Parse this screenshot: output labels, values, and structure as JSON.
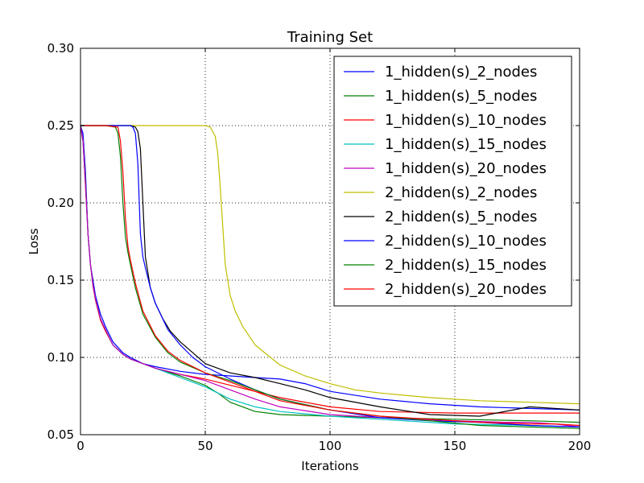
{
  "chart_data": {
    "type": "line",
    "title": "Training Set",
    "xlabel": "Iterations",
    "ylabel": "Loss",
    "xlim": [
      0,
      200
    ],
    "ylim": [
      0.05,
      0.3
    ],
    "xticks": [
      "0",
      "50",
      "100",
      "150",
      "200"
    ],
    "yticks": [
      "0.05",
      "0.10",
      "0.15",
      "0.20",
      "0.25",
      "0.30"
    ],
    "grid": true,
    "legend_position": "top-right",
    "series": [
      {
        "name": "1_hidden(s)_2_nodes",
        "color": "#0000ff",
        "x": [
          0,
          1,
          2,
          3,
          4,
          5,
          6,
          8,
          10,
          13,
          17,
          20,
          25,
          30,
          40,
          50,
          60,
          70,
          80,
          90,
          100,
          120,
          140,
          160,
          180,
          200
        ],
        "y": [
          0.25,
          0.245,
          0.22,
          0.18,
          0.16,
          0.15,
          0.14,
          0.128,
          0.12,
          0.11,
          0.103,
          0.1,
          0.096,
          0.094,
          0.091,
          0.089,
          0.088,
          0.087,
          0.086,
          0.083,
          0.078,
          0.073,
          0.07,
          0.068,
          0.067,
          0.066
        ]
      },
      {
        "name": "1_hidden(s)_5_nodes",
        "color": "#008000",
        "x": [
          0,
          1,
          2,
          3,
          4,
          5,
          6,
          8,
          10,
          13,
          17,
          20,
          25,
          30,
          40,
          50,
          55,
          60,
          70,
          80,
          100,
          120,
          150,
          180,
          200
        ],
        "y": [
          0.25,
          0.24,
          0.215,
          0.18,
          0.16,
          0.147,
          0.138,
          0.125,
          0.118,
          0.108,
          0.102,
          0.099,
          0.096,
          0.093,
          0.088,
          0.082,
          0.077,
          0.071,
          0.065,
          0.063,
          0.062,
          0.061,
          0.06,
          0.059,
          0.058
        ]
      },
      {
        "name": "1_hidden(s)_10_nodes",
        "color": "#ff0000",
        "x": [
          0,
          1,
          2,
          3,
          4,
          5,
          6,
          8,
          10,
          13,
          17,
          20,
          25,
          30,
          40,
          50,
          60,
          70,
          80,
          100,
          120,
          150,
          180,
          200
        ],
        "y": [
          0.25,
          0.24,
          0.21,
          0.18,
          0.16,
          0.146,
          0.137,
          0.124,
          0.117,
          0.108,
          0.102,
          0.099,
          0.096,
          0.093,
          0.089,
          0.086,
          0.082,
          0.078,
          0.074,
          0.068,
          0.065,
          0.064,
          0.064,
          0.064
        ]
      },
      {
        "name": "1_hidden(s)_15_nodes",
        "color": "#00bfbf",
        "x": [
          0,
          1,
          2,
          3,
          4,
          5,
          6,
          8,
          10,
          13,
          17,
          20,
          25,
          30,
          40,
          50,
          55,
          60,
          70,
          80,
          100,
          120,
          150,
          180,
          200
        ],
        "y": [
          0.25,
          0.24,
          0.212,
          0.18,
          0.16,
          0.147,
          0.138,
          0.125,
          0.118,
          0.108,
          0.102,
          0.099,
          0.096,
          0.093,
          0.087,
          0.081,
          0.077,
          0.073,
          0.068,
          0.065,
          0.062,
          0.06,
          0.057,
          0.056,
          0.055
        ]
      },
      {
        "name": "1_hidden(s)_20_nodes",
        "color": "#bf00bf",
        "x": [
          0,
          1,
          2,
          3,
          4,
          5,
          6,
          8,
          10,
          13,
          17,
          20,
          25,
          30,
          40,
          50,
          60,
          70,
          80,
          100,
          120,
          150,
          170,
          180,
          190,
          200
        ],
        "y": [
          0.25,
          0.24,
          0.212,
          0.18,
          0.16,
          0.147,
          0.138,
          0.125,
          0.118,
          0.108,
          0.102,
          0.099,
          0.096,
          0.093,
          0.089,
          0.085,
          0.079,
          0.073,
          0.068,
          0.063,
          0.061,
          0.059,
          0.058,
          0.058,
          0.057,
          0.055
        ]
      },
      {
        "name": "2_hidden(s)_2_nodes",
        "color": "#bfbf00",
        "x": [
          0,
          10,
          20,
          30,
          40,
          50,
          52,
          54,
          55,
          56,
          57,
          58,
          60,
          62,
          65,
          70,
          80,
          90,
          100,
          110,
          120,
          140,
          160,
          180,
          200
        ],
        "y": [
          0.25,
          0.25,
          0.25,
          0.25,
          0.25,
          0.25,
          0.249,
          0.243,
          0.232,
          0.21,
          0.185,
          0.16,
          0.14,
          0.13,
          0.12,
          0.108,
          0.095,
          0.088,
          0.083,
          0.079,
          0.077,
          0.074,
          0.072,
          0.071,
          0.07
        ]
      },
      {
        "name": "2_hidden(s)_5_nodes",
        "color": "#000000",
        "x": [
          0,
          10,
          20,
          22,
          23,
          24,
          25,
          26,
          27,
          28,
          30,
          33,
          36,
          40,
          45,
          50,
          60,
          70,
          80,
          90,
          100,
          120,
          140,
          160,
          180,
          200
        ],
        "y": [
          0.25,
          0.25,
          0.25,
          0.249,
          0.246,
          0.235,
          0.2,
          0.165,
          0.155,
          0.145,
          0.135,
          0.125,
          0.117,
          0.11,
          0.103,
          0.096,
          0.09,
          0.087,
          0.083,
          0.079,
          0.074,
          0.068,
          0.063,
          0.062,
          0.068,
          0.066
        ]
      },
      {
        "name": "2_hidden(s)_10_nodes",
        "color": "#0000ff",
        "x": [
          0,
          10,
          20,
          21,
          22,
          23,
          24,
          25,
          26,
          28,
          30,
          35,
          40,
          45,
          50,
          60,
          70,
          80,
          100,
          120,
          140,
          160,
          180,
          200
        ],
        "y": [
          0.25,
          0.25,
          0.25,
          0.249,
          0.245,
          0.225,
          0.18,
          0.165,
          0.158,
          0.145,
          0.135,
          0.118,
          0.108,
          0.1,
          0.094,
          0.086,
          0.079,
          0.073,
          0.066,
          0.061,
          0.059,
          0.058,
          0.056,
          0.055
        ]
      },
      {
        "name": "2_hidden(s)_15_nodes",
        "color": "#008000",
        "x": [
          0,
          10,
          14,
          15,
          16,
          17,
          18,
          19,
          20,
          22,
          25,
          30,
          35,
          40,
          50,
          60,
          70,
          80,
          100,
          120,
          140,
          160,
          180,
          200
        ],
        "y": [
          0.25,
          0.25,
          0.249,
          0.245,
          0.23,
          0.2,
          0.178,
          0.168,
          0.16,
          0.145,
          0.128,
          0.113,
          0.103,
          0.097,
          0.09,
          0.085,
          0.079,
          0.073,
          0.066,
          0.062,
          0.059,
          0.056,
          0.055,
          0.054
        ]
      },
      {
        "name": "2_hidden(s)_20_nodes",
        "color": "#ff0000",
        "x": [
          0,
          10,
          15,
          16,
          17,
          18,
          19,
          20,
          22,
          25,
          30,
          35,
          40,
          50,
          60,
          70,
          80,
          100,
          120,
          140,
          160,
          180,
          190,
          200
        ],
        "y": [
          0.25,
          0.25,
          0.249,
          0.24,
          0.22,
          0.19,
          0.172,
          0.163,
          0.148,
          0.13,
          0.114,
          0.104,
          0.098,
          0.09,
          0.084,
          0.078,
          0.072,
          0.066,
          0.062,
          0.06,
          0.058,
          0.057,
          0.057,
          0.056
        ]
      }
    ]
  }
}
